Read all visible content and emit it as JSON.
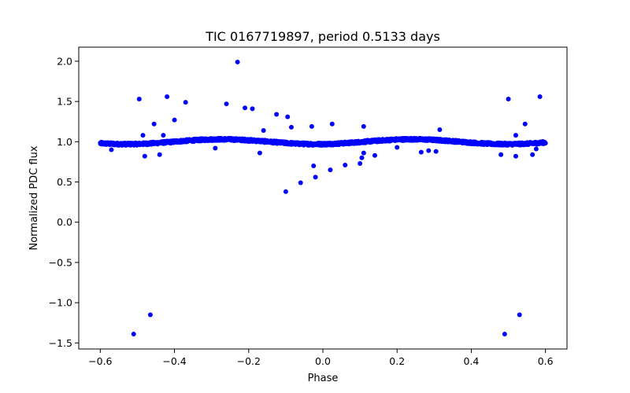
{
  "chart_data": {
    "type": "scatter",
    "title": "TIC 0167719897, period 0.5133 days",
    "xlabel": "Phase",
    "ylabel": "Normalized PDC flux",
    "xlim": [
      -0.658,
      0.658
    ],
    "ylim": [
      -1.575,
      2.175
    ],
    "xticks": [
      -0.6,
      -0.4,
      -0.2,
      0.0,
      0.2,
      0.4,
      0.6
    ],
    "xtick_labels": [
      "−0.6",
      "−0.4",
      "−0.2",
      "0.0",
      "0.2",
      "0.4",
      "0.6"
    ],
    "yticks": [
      -1.5,
      -1.0,
      -0.5,
      0.0,
      0.5,
      1.0,
      1.5,
      2.0
    ],
    "ytick_labels": [
      "−1.5",
      "−1.0",
      "−0.5",
      "0.0",
      "0.5",
      "1.0",
      "1.5",
      "2.0"
    ],
    "grid": false,
    "marker_color": "#0000ff",
    "trend": {
      "description": "dense band of points following a sinusoid",
      "phase_range": [
        -0.6,
        0.6
      ],
      "period_in_phase": 0.5133,
      "mean": 1.0,
      "amplitude": 0.03,
      "peak_phase": 0.24,
      "scatter": 0.015
    },
    "outliers": [
      [
        -0.51,
        -1.39
      ],
      [
        -0.465,
        -1.15
      ],
      [
        0.49,
        -1.39
      ],
      [
        0.53,
        -1.15
      ],
      [
        -0.495,
        1.53
      ],
      [
        -0.42,
        1.56
      ],
      [
        -0.37,
        1.49
      ],
      [
        -0.4,
        1.27
      ],
      [
        -0.455,
        1.22
      ],
      [
        -0.26,
        1.47
      ],
      [
        -0.23,
        1.99
      ],
      [
        -0.21,
        1.42
      ],
      [
        -0.19,
        1.41
      ],
      [
        -0.125,
        1.34
      ],
      [
        -0.095,
        1.31
      ],
      [
        -0.085,
        1.18
      ],
      [
        -0.16,
        1.14
      ],
      [
        -0.1,
        0.38
      ],
      [
        -0.06,
        0.49
      ],
      [
        -0.02,
        0.56
      ],
      [
        -0.025,
        0.7
      ],
      [
        0.02,
        0.65
      ],
      [
        0.06,
        0.71
      ],
      [
        0.1,
        0.73
      ],
      [
        0.105,
        0.8
      ],
      [
        0.11,
        0.86
      ],
      [
        0.14,
        0.83
      ],
      [
        0.025,
        1.22
      ],
      [
        0.11,
        1.19
      ],
      [
        -0.03,
        1.19
      ],
      [
        0.315,
        1.15
      ],
      [
        0.5,
        1.53
      ],
      [
        0.545,
        1.22
      ],
      [
        0.585,
        1.56
      ],
      [
        0.265,
        0.87
      ],
      [
        0.285,
        0.89
      ],
      [
        0.305,
        0.88
      ],
      [
        0.48,
        0.84
      ],
      [
        0.52,
        0.82
      ],
      [
        0.565,
        0.84
      ],
      [
        -0.48,
        0.82
      ],
      [
        -0.44,
        0.84
      ],
      [
        -0.485,
        1.08
      ],
      [
        -0.43,
        1.08
      ],
      [
        0.52,
        1.08
      ],
      [
        -0.17,
        0.86
      ],
      [
        -0.29,
        0.92
      ],
      [
        0.2,
        0.93
      ],
      [
        -0.57,
        0.9
      ],
      [
        0.575,
        0.91
      ]
    ]
  }
}
